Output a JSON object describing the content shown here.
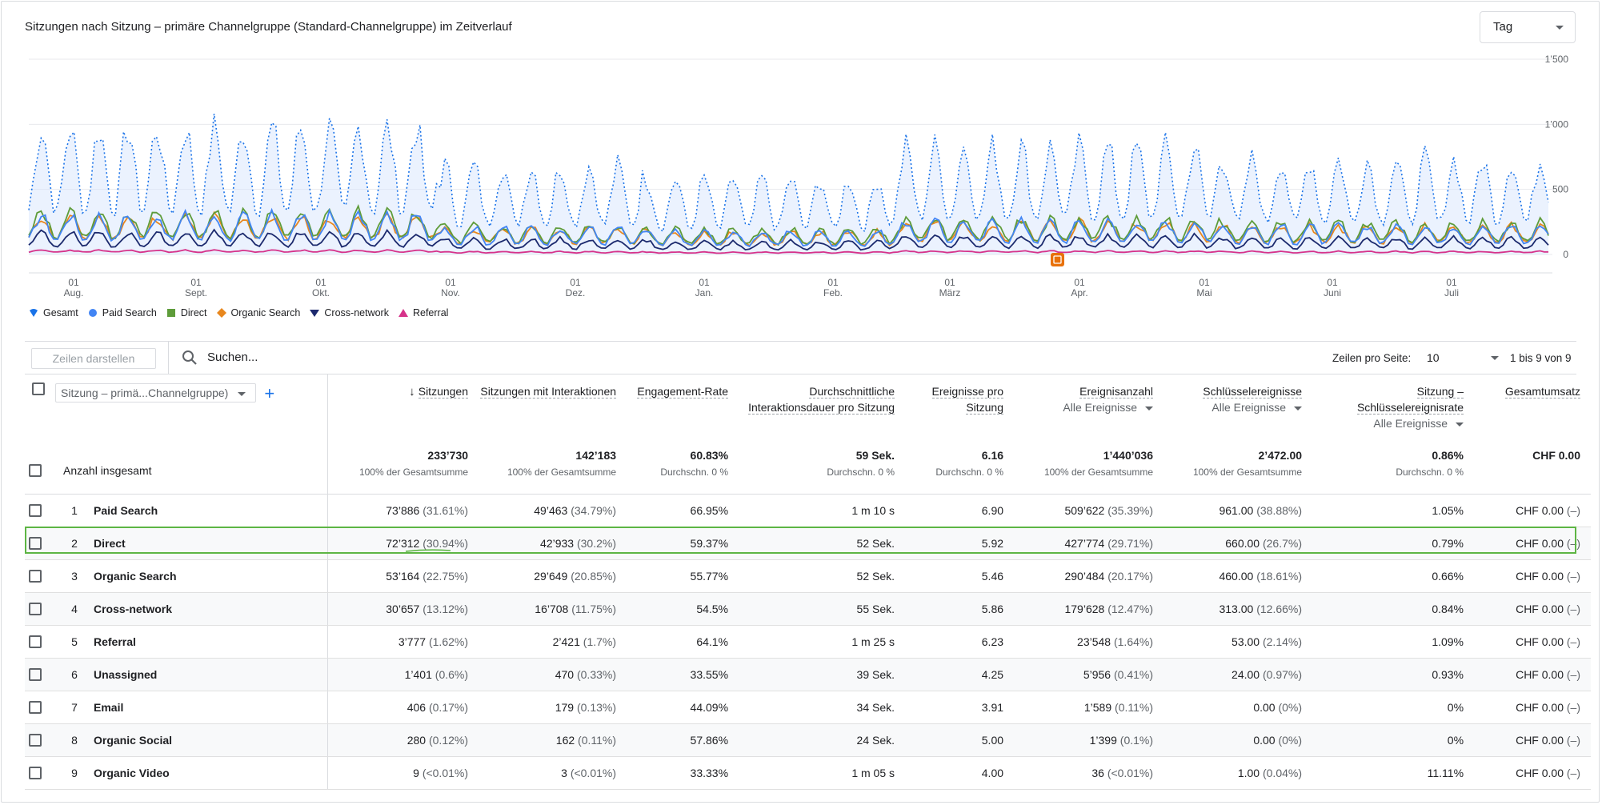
{
  "chart": {
    "title": "Sitzungen nach Sitzung – primäre Channelgruppe (Standard-Channelgruppe) im Zeitverlauf",
    "granularity": "Tag",
    "y_ticks": [
      "1’500",
      "1’000",
      "500",
      "0"
    ],
    "x_ticks": [
      {
        "day": "01",
        "month": "Aug."
      },
      {
        "day": "01",
        "month": "Sept."
      },
      {
        "day": "01",
        "month": "Okt."
      },
      {
        "day": "01",
        "month": "Nov."
      },
      {
        "day": "01",
        "month": "Dez."
      },
      {
        "day": "01",
        "month": "Jan."
      },
      {
        "day": "01",
        "month": "Feb."
      },
      {
        "day": "01",
        "month": "März"
      },
      {
        "day": "01",
        "month": "Apr."
      },
      {
        "day": "01",
        "month": "Mai"
      },
      {
        "day": "01",
        "month": "Juni"
      },
      {
        "day": "01",
        "month": "Juli"
      }
    ],
    "legend": [
      {
        "name": "Gesamt",
        "color": "#1a73e8",
        "marker": "pin"
      },
      {
        "name": "Paid Search",
        "color": "#4285f4",
        "marker": "circle"
      },
      {
        "name": "Direct",
        "color": "#5e9c3a",
        "marker": "square"
      },
      {
        "name": "Organic Search",
        "color": "#e8871e",
        "marker": "diamond"
      },
      {
        "name": "Cross-network",
        "color": "#1c2a6e",
        "marker": "triangle-down"
      },
      {
        "name": "Referral",
        "color": "#d6338a",
        "marker": "triangle-up"
      }
    ],
    "annotation_icon": "note-icon"
  },
  "toolbar": {
    "rows_button": "Zeilen darstellen",
    "search_placeholder": "Suchen...",
    "rows_per_page_label": "Zeilen pro Seite:",
    "rows_per_page_value": "10",
    "range_text": "1 bis 9 von 9"
  },
  "table": {
    "dimension_selector": "Sitzung – primä...Channelgruppe)",
    "columns": [
      {
        "label": "Sitzungen",
        "sorted": true
      },
      {
        "label": "Sitzungen mit Interaktionen"
      },
      {
        "label": "Engagement-Rate"
      },
      {
        "label": "Durchschnittliche Interaktionsdauer pro Sitzung"
      },
      {
        "label": "Ereignisse pro Sitzung"
      },
      {
        "label": "Ereignisanzahl",
        "filter": "Alle Ereignisse"
      },
      {
        "label": "Schlüsselereignisse",
        "filter": "Alle Ereignisse"
      },
      {
        "label": "Sitzung – Schlüsselereignisrate",
        "filter": "Alle Ereignisse"
      },
      {
        "label": "Gesamtumsatz"
      }
    ],
    "totals": {
      "label": "Anzahl insgesamt",
      "values": [
        {
          "v": "233’730",
          "p": "100% der Gesamtsumme"
        },
        {
          "v": "142’183",
          "p": "100% der Gesamtsumme"
        },
        {
          "v": "60.83%",
          "p": "Durchschn. 0 %"
        },
        {
          "v": "59 Sek.",
          "p": "Durchschn. 0 %"
        },
        {
          "v": "6.16",
          "p": "Durchschn. 0 %"
        },
        {
          "v": "1’440’036",
          "p": "100% der Gesamtsumme"
        },
        {
          "v": "2’472.00",
          "p": "100% der Gesamtsumme"
        },
        {
          "v": "0.86%",
          "p": "Durchschn. 0 %"
        },
        {
          "v": "CHF 0.00",
          "p": ""
        }
      ]
    },
    "rows": [
      {
        "idx": "1",
        "name": "Paid Search",
        "c": [
          [
            "73’886",
            "(31.61%)"
          ],
          [
            "49’463",
            "(34.79%)"
          ],
          [
            "66.95%",
            ""
          ],
          [
            "1 m 10 s",
            ""
          ],
          [
            "6.90",
            ""
          ],
          [
            "509’622",
            "(35.39%)"
          ],
          [
            "961.00",
            "(38.88%)"
          ],
          [
            "1.05%",
            ""
          ],
          [
            "CHF 0.00",
            "(–)"
          ]
        ]
      },
      {
        "idx": "2",
        "name": "Direct",
        "c": [
          [
            "72’312",
            "(30.94%)"
          ],
          [
            "42’933",
            "(30.2%)"
          ],
          [
            "59.37%",
            ""
          ],
          [
            "52 Sek.",
            ""
          ],
          [
            "5.92",
            ""
          ],
          [
            "427’774",
            "(29.71%)"
          ],
          [
            "660.00",
            "(26.7%)"
          ],
          [
            "0.79%",
            ""
          ],
          [
            "CHF 0.00",
            "(–)"
          ]
        ]
      },
      {
        "idx": "3",
        "name": "Organic Search",
        "c": [
          [
            "53’164",
            "(22.75%)"
          ],
          [
            "29’649",
            "(20.85%)"
          ],
          [
            "55.77%",
            ""
          ],
          [
            "52 Sek.",
            ""
          ],
          [
            "5.46",
            ""
          ],
          [
            "290’484",
            "(20.17%)"
          ],
          [
            "460.00",
            "(18.61%)"
          ],
          [
            "0.66%",
            ""
          ],
          [
            "CHF 0.00",
            "(–)"
          ]
        ]
      },
      {
        "idx": "4",
        "name": "Cross-network",
        "c": [
          [
            "30’657",
            "(13.12%)"
          ],
          [
            "16’708",
            "(11.75%)"
          ],
          [
            "54.5%",
            ""
          ],
          [
            "55 Sek.",
            ""
          ],
          [
            "5.86",
            ""
          ],
          [
            "179’628",
            "(12.47%)"
          ],
          [
            "313.00",
            "(12.66%)"
          ],
          [
            "0.84%",
            ""
          ],
          [
            "CHF 0.00",
            "(–)"
          ]
        ]
      },
      {
        "idx": "5",
        "name": "Referral",
        "c": [
          [
            "3’777",
            "(1.62%)"
          ],
          [
            "2’421",
            "(1.7%)"
          ],
          [
            "64.1%",
            ""
          ],
          [
            "1 m 25 s",
            ""
          ],
          [
            "6.23",
            ""
          ],
          [
            "23’548",
            "(1.64%)"
          ],
          [
            "53.00",
            "(2.14%)"
          ],
          [
            "1.09%",
            ""
          ],
          [
            "CHF 0.00",
            "(–)"
          ]
        ]
      },
      {
        "idx": "6",
        "name": "Unassigned",
        "c": [
          [
            "1’401",
            "(0.6%)"
          ],
          [
            "470",
            "(0.33%)"
          ],
          [
            "33.55%",
            ""
          ],
          [
            "39 Sek.",
            ""
          ],
          [
            "4.25",
            ""
          ],
          [
            "5’956",
            "(0.41%)"
          ],
          [
            "24.00",
            "(0.97%)"
          ],
          [
            "0.93%",
            ""
          ],
          [
            "CHF 0.00",
            "(–)"
          ]
        ]
      },
      {
        "idx": "7",
        "name": "Email",
        "c": [
          [
            "406",
            "(0.17%)"
          ],
          [
            "179",
            "(0.13%)"
          ],
          [
            "44.09%",
            ""
          ],
          [
            "34 Sek.",
            ""
          ],
          [
            "3.91",
            ""
          ],
          [
            "1’589",
            "(0.11%)"
          ],
          [
            "0.00",
            "(0%)"
          ],
          [
            "0%",
            ""
          ],
          [
            "CHF 0.00",
            "(–)"
          ]
        ]
      },
      {
        "idx": "8",
        "name": "Organic Social",
        "c": [
          [
            "280",
            "(0.12%)"
          ],
          [
            "162",
            "(0.11%)"
          ],
          [
            "57.86%",
            ""
          ],
          [
            "24 Sek.",
            ""
          ],
          [
            "5.00",
            ""
          ],
          [
            "1’399",
            "(0.1%)"
          ],
          [
            "0.00",
            "(0%)"
          ],
          [
            "0%",
            ""
          ],
          [
            "CHF 0.00",
            "(–)"
          ]
        ]
      },
      {
        "idx": "9",
        "name": "Organic Video",
        "c": [
          [
            "9",
            "(<0.01%)"
          ],
          [
            "3",
            "(<0.01%)"
          ],
          [
            "33.33%",
            ""
          ],
          [
            "1 m 05 s",
            ""
          ],
          [
            "4.00",
            ""
          ],
          [
            "36",
            "(<0.01%)"
          ],
          [
            "1.00",
            "(0.04%)"
          ],
          [
            "11.11%",
            ""
          ],
          [
            "CHF 0.00",
            "(–)"
          ]
        ]
      }
    ],
    "highlighted_row": "Direct",
    "highlight_color": "#5db544"
  }
}
